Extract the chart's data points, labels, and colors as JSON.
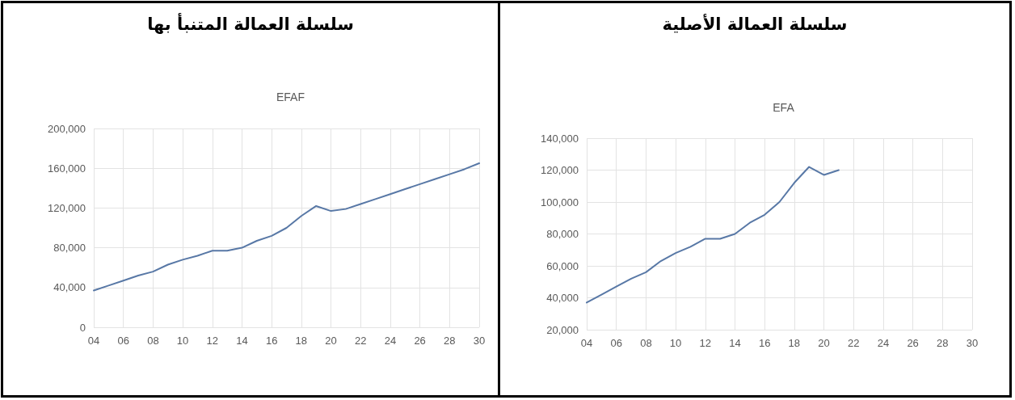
{
  "chart_data": [
    {
      "type": "line",
      "title": "سلسلة العمالة المتنبأ بها",
      "subtitle": "EFAF",
      "x": [
        2004,
        2005,
        2006,
        2007,
        2008,
        2009,
        2010,
        2011,
        2012,
        2013,
        2014,
        2015,
        2016,
        2017,
        2018,
        2019,
        2020,
        2021,
        2022,
        2023,
        2024,
        2025,
        2026,
        2027,
        2028,
        2029,
        2030
      ],
      "series": [
        {
          "color": "#5878a6",
          "values": [
            37000,
            42000,
            47000,
            52000,
            56000,
            63000,
            68000,
            72000,
            77000,
            77000,
            80000,
            87000,
            92000,
            100000,
            112000,
            122000,
            117000,
            119000,
            124000,
            129000,
            134000,
            139000,
            144000,
            149000,
            154000,
            159000,
            165000
          ]
        }
      ],
      "xlim": [
        2004,
        2030
      ],
      "xticks": [
        {
          "value": 2004,
          "label": "04"
        },
        {
          "value": 2006,
          "label": "06"
        },
        {
          "value": 2008,
          "label": "08"
        },
        {
          "value": 2010,
          "label": "10"
        },
        {
          "value": 2012,
          "label": "12"
        },
        {
          "value": 2014,
          "label": "14"
        },
        {
          "value": 2016,
          "label": "16"
        },
        {
          "value": 2018,
          "label": "18"
        },
        {
          "value": 2020,
          "label": "20"
        },
        {
          "value": 2022,
          "label": "22"
        },
        {
          "value": 2024,
          "label": "24"
        },
        {
          "value": 2026,
          "label": "26"
        },
        {
          "value": 2028,
          "label": "28"
        },
        {
          "value": 2030,
          "label": "30"
        }
      ],
      "ylim": [
        0,
        200000
      ],
      "yticks": [
        0,
        {
          "value": 40000,
          "label": "40,000"
        },
        {
          "value": 80000,
          "label": "80,000"
        },
        {
          "value": 120000,
          "label": "120,000"
        },
        {
          "value": 160000,
          "label": "160,000"
        },
        {
          "value": 200000,
          "label": "200,000"
        }
      ],
      "grid": true
    },
    {
      "type": "line",
      "title": "سلسلة العمالة الأصلية",
      "subtitle": "EFA",
      "x": [
        2004,
        2005,
        2006,
        2007,
        2008,
        2009,
        2010,
        2011,
        2012,
        2013,
        2014,
        2015,
        2016,
        2017,
        2018,
        2019,
        2020,
        2021
      ],
      "series": [
        {
          "color": "#5878a6",
          "values": [
            37000,
            42000,
            47000,
            52000,
            56000,
            63000,
            68000,
            72000,
            77000,
            77000,
            80000,
            87000,
            92000,
            100000,
            112000,
            122000,
            117000,
            120000
          ]
        }
      ],
      "xlim": [
        2004,
        2030
      ],
      "xticks": [
        {
          "value": 2004,
          "label": "04"
        },
        {
          "value": 2006,
          "label": "06"
        },
        {
          "value": 2008,
          "label": "08"
        },
        {
          "value": 2010,
          "label": "10"
        },
        {
          "value": 2012,
          "label": "12"
        },
        {
          "value": 2014,
          "label": "14"
        },
        {
          "value": 2016,
          "label": "16"
        },
        {
          "value": 2018,
          "label": "18"
        },
        {
          "value": 2020,
          "label": "20"
        },
        {
          "value": 2022,
          "label": "22"
        },
        {
          "value": 2024,
          "label": "24"
        },
        {
          "value": 2026,
          "label": "26"
        },
        {
          "value": 2028,
          "label": "28"
        },
        {
          "value": 2030,
          "label": "30"
        }
      ],
      "ylim": [
        20000,
        140000
      ],
      "yticks": [
        {
          "value": 20000,
          "label": "20,000"
        },
        {
          "value": 40000,
          "label": "40,000"
        },
        {
          "value": 60000,
          "label": "60,000"
        },
        {
          "value": 80000,
          "label": "80,000"
        },
        {
          "value": 100000,
          "label": "100,000"
        },
        {
          "value": 120000,
          "label": "120,000"
        },
        {
          "value": 140000,
          "label": "140,000"
        }
      ],
      "grid": true
    }
  ]
}
